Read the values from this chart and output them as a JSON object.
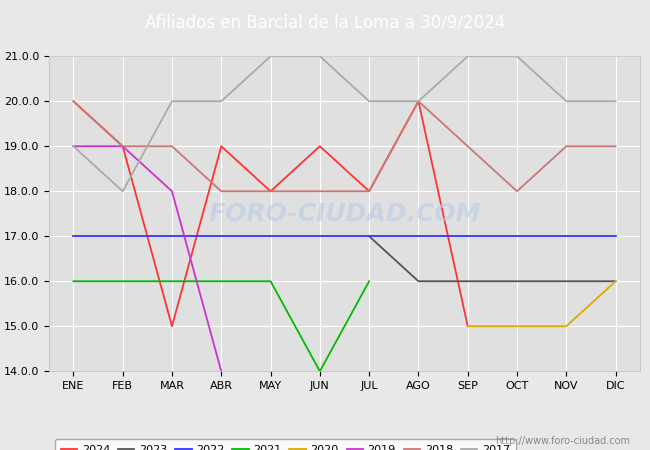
{
  "title": "Afiliados en Barcial de la Loma a 30/9/2024",
  "title_bg": "#5b8dd9",
  "title_color": "white",
  "ylim": [
    14.0,
    21.0
  ],
  "yticks": [
    14.0,
    15.0,
    16.0,
    17.0,
    18.0,
    19.0,
    20.0,
    21.0
  ],
  "xtick_labels": [
    "ENE",
    "FEB",
    "MAR",
    "ABR",
    "MAY",
    "JUN",
    "JUL",
    "AGO",
    "SEP",
    "OCT",
    "NOV",
    "DIC"
  ],
  "watermark": "FORO-CIUDAD.COM",
  "url": "http://www.foro-ciudad.com",
  "series": {
    "2024": {
      "color": "#ff3333",
      "data": [
        20,
        19,
        15,
        19,
        18,
        19,
        18,
        20,
        15,
        null,
        null,
        null
      ]
    },
    "2023": {
      "color": "#555555",
      "data": [
        null,
        null,
        null,
        null,
        null,
        null,
        17,
        16,
        16,
        16,
        16,
        16
      ]
    },
    "2022": {
      "color": "#3333ff",
      "data": [
        17,
        17,
        17,
        17,
        17,
        17,
        17,
        17,
        17,
        17,
        17,
        17
      ]
    },
    "2021": {
      "color": "#00bb00",
      "data": [
        16,
        16,
        16,
        16,
        16,
        14,
        16,
        null,
        null,
        null,
        null,
        null
      ]
    },
    "2020": {
      "color": "#ddaa00",
      "data": [
        null,
        null,
        null,
        null,
        null,
        null,
        null,
        null,
        15,
        15,
        15,
        16
      ]
    },
    "2019": {
      "color": "#cc33cc",
      "data": [
        19,
        19,
        18,
        14,
        null,
        null,
        null,
        null,
        null,
        null,
        null,
        null
      ]
    },
    "2018": {
      "color": "#cc7777",
      "data": [
        20,
        19,
        19,
        18,
        18,
        18,
        18,
        20,
        19,
        18,
        19,
        19
      ]
    },
    "2017": {
      "color": "#aaaaaa",
      "data": [
        19,
        18,
        20,
        20,
        21,
        21,
        20,
        20,
        21,
        21,
        20,
        20
      ]
    }
  },
  "legend_order": [
    "2024",
    "2023",
    "2022",
    "2021",
    "2020",
    "2019",
    "2018",
    "2017"
  ],
  "bg_color": "#e8e8e8",
  "plot_bg_color": "#e0e0e0",
  "grid_color": "#ffffff",
  "fontsize_title": 12,
  "fontsize_ticks": 8,
  "fontsize_legend": 8,
  "fontsize_url": 7
}
